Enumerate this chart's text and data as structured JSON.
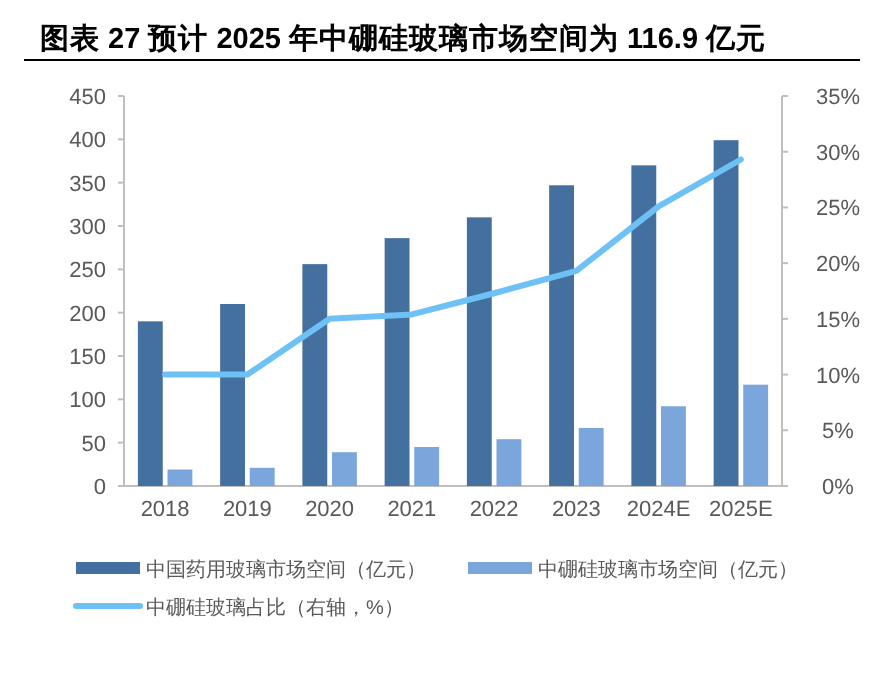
{
  "chart_data": {
    "type": "bar",
    "title": "图表 27 预计 2025 年中硼硅玻璃市场空间为 116.9 亿元",
    "categories": [
      "2018",
      "2019",
      "2020",
      "2021",
      "2022",
      "2023",
      "2024E",
      "2025E"
    ],
    "series": [
      {
        "name": "中国药用玻璃市场空间（亿元）",
        "color": "#44709f",
        "values": [
          190,
          210,
          256,
          286,
          310,
          347,
          370,
          399
        ]
      },
      {
        "name": "中硼硅玻璃市场空间（亿元）",
        "color": "#7aa6dc",
        "values": [
          19,
          21,
          39,
          45,
          54,
          67,
          92,
          116.9
        ]
      },
      {
        "name": "中硼硅玻璃占比（右轴，%）",
        "type": "line",
        "axis": "y2",
        "color": "#6ec1f5",
        "values": [
          10,
          10,
          15,
          15.4,
          17.3,
          19.3,
          25.1,
          29.3
        ]
      }
    ],
    "ylim": [
      0,
      450
    ],
    "yticks": [
      0,
      50,
      100,
      150,
      200,
      250,
      300,
      350,
      400,
      450
    ],
    "y2lim": [
      0,
      35
    ],
    "y2ticks": [
      {
        "value": 0,
        "label": "0%"
      },
      {
        "value": 5,
        "label": "5%"
      },
      {
        "value": 10,
        "label": "10%"
      },
      {
        "value": 15,
        "label": "15%"
      },
      {
        "value": 20,
        "label": "20%"
      },
      {
        "value": 25,
        "label": "25%"
      },
      {
        "value": 30,
        "label": "30%"
      },
      {
        "value": 35,
        "label": "35%"
      }
    ],
    "legend": "bottom"
  }
}
